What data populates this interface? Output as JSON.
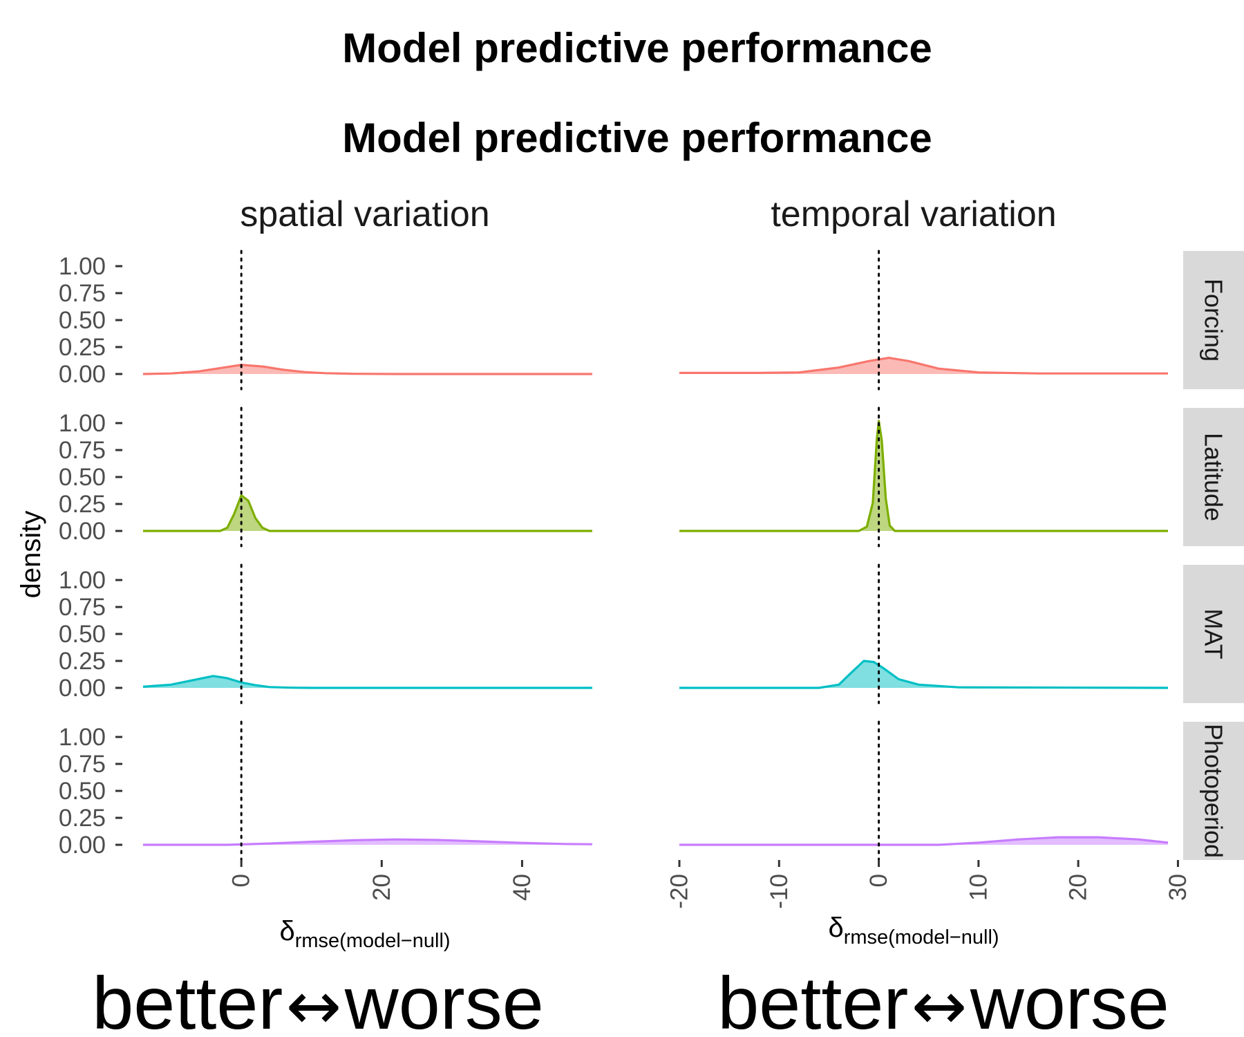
{
  "titles": [
    "Model predictive performance",
    "Model predictive performance"
  ],
  "y_axis_label": "density",
  "x_axis_label": {
    "main": "δ",
    "sub": "rmse(model−null)"
  },
  "footer": {
    "left": "better",
    "arrow": "↔",
    "right": "worse"
  },
  "chart_data": {
    "type": "area",
    "facets": [
      "spatial variation",
      "temporal variation"
    ],
    "rows": [
      "Forcing",
      "Latitude",
      "MAT",
      "Photoperiod"
    ],
    "row_colors": {
      "Forcing": "#F8766D",
      "Latitude": "#7CAE00",
      "MAT": "#00BFC4",
      "Photoperiod": "#C77CFF"
    },
    "ylim": [
      0,
      1
    ],
    "y_ticks": [
      "0.00",
      "0.25",
      "0.50",
      "0.75",
      "1.00"
    ],
    "reference_line_x": 0,
    "panels": {
      "spatial variation": {
        "xlim": [
          -14,
          50
        ],
        "x_ticks": [
          0,
          20,
          40
        ],
        "series": {
          "Forcing": [
            [
              -14,
              0.0
            ],
            [
              -10,
              0.005
            ],
            [
              -6,
              0.025
            ],
            [
              -3,
              0.055
            ],
            [
              0,
              0.085
            ],
            [
              3,
              0.07
            ],
            [
              6,
              0.04
            ],
            [
              9,
              0.018
            ],
            [
              12,
              0.008
            ],
            [
              16,
              0.002
            ],
            [
              22,
              0.0
            ],
            [
              50,
              0.0
            ]
          ],
          "Latitude": [
            [
              -14,
              0.0
            ],
            [
              -3,
              0.0
            ],
            [
              -2,
              0.03
            ],
            [
              -1,
              0.16
            ],
            [
              0,
              0.33
            ],
            [
              1,
              0.28
            ],
            [
              2,
              0.12
            ],
            [
              3,
              0.03
            ],
            [
              4,
              0.0
            ],
            [
              50,
              0.0
            ]
          ],
          "MAT": [
            [
              -14,
              0.01
            ],
            [
              -10,
              0.03
            ],
            [
              -7,
              0.07
            ],
            [
              -4,
              0.11
            ],
            [
              -2,
              0.09
            ],
            [
              0,
              0.05
            ],
            [
              2,
              0.025
            ],
            [
              4,
              0.008
            ],
            [
              7,
              0.002
            ],
            [
              10,
              0.0
            ],
            [
              50,
              0.0
            ]
          ],
          "Photoperiod": [
            [
              -14,
              0.0
            ],
            [
              -2,
              0.0
            ],
            [
              4,
              0.012
            ],
            [
              10,
              0.028
            ],
            [
              16,
              0.042
            ],
            [
              22,
              0.05
            ],
            [
              28,
              0.045
            ],
            [
              34,
              0.032
            ],
            [
              40,
              0.018
            ],
            [
              46,
              0.008
            ],
            [
              50,
              0.005
            ]
          ]
        }
      },
      "temporal variation": {
        "xlim": [
          -20,
          29
        ],
        "x_ticks": [
          -20,
          -10,
          0,
          10,
          20,
          30
        ],
        "series": {
          "Forcing": [
            [
              -20,
              0.01
            ],
            [
              -12,
              0.01
            ],
            [
              -8,
              0.015
            ],
            [
              -4,
              0.06
            ],
            [
              -1,
              0.12
            ],
            [
              1,
              0.15
            ],
            [
              3,
              0.12
            ],
            [
              6,
              0.05
            ],
            [
              10,
              0.015
            ],
            [
              16,
              0.005
            ],
            [
              29,
              0.005
            ]
          ],
          "Latitude": [
            [
              -20,
              0.0
            ],
            [
              -2,
              0.0
            ],
            [
              -1.2,
              0.04
            ],
            [
              -0.6,
              0.26
            ],
            [
              -0.2,
              0.85
            ],
            [
              0,
              1.02
            ],
            [
              0.3,
              0.84
            ],
            [
              0.7,
              0.3
            ],
            [
              1.1,
              0.05
            ],
            [
              1.6,
              0.0
            ],
            [
              29,
              0.0
            ]
          ],
          "MAT": [
            [
              -20,
              0.0
            ],
            [
              -6,
              0.0
            ],
            [
              -4,
              0.03
            ],
            [
              -3,
              0.12
            ],
            [
              -1.5,
              0.25
            ],
            [
              -0.5,
              0.24
            ],
            [
              0.5,
              0.18
            ],
            [
              2,
              0.08
            ],
            [
              4,
              0.03
            ],
            [
              8,
              0.005
            ],
            [
              29,
              0.0
            ]
          ],
          "Photoperiod": [
            [
              -20,
              0.0
            ],
            [
              6,
              0.0
            ],
            [
              10,
              0.02
            ],
            [
              14,
              0.05
            ],
            [
              18,
              0.07
            ],
            [
              22,
              0.07
            ],
            [
              26,
              0.05
            ],
            [
              29,
              0.02
            ]
          ]
        }
      }
    }
  }
}
